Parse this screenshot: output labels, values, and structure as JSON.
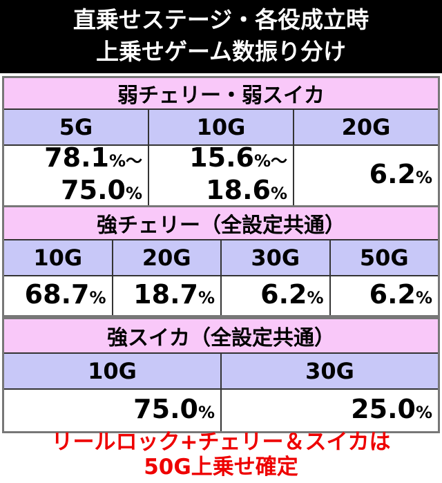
{
  "header": {
    "lines": [
      "直乗せステージ・各役成立時",
      "上乗せゲーム数振り分け"
    ]
  },
  "tables": [
    {
      "title": "弱チェリー・弱スイカ",
      "columns": [
        "5G",
        "10G",
        "20G"
      ],
      "cells": [
        [
          "78.1%〜",
          "75.0%"
        ],
        [
          "15.6%〜",
          "18.6%"
        ],
        [
          "6.2%"
        ]
      ]
    },
    {
      "title": "強チェリー（全設定共通）",
      "columns": [
        "10G",
        "20G",
        "30G",
        "50G"
      ],
      "cells": [
        [
          "68.7%"
        ],
        [
          "18.7%"
        ],
        [
          "6.2%"
        ],
        [
          "6.2%"
        ]
      ]
    },
    {
      "title": "強スイカ（全設定共通）",
      "columns": [
        "10G",
        "30G"
      ],
      "cells": [
        [
          "75.0%"
        ],
        [
          "25.0%"
        ]
      ]
    }
  ],
  "footer": {
    "lines": [
      "リールロック+チェリー＆スイカは",
      "50G上乗せ確定"
    ]
  }
}
